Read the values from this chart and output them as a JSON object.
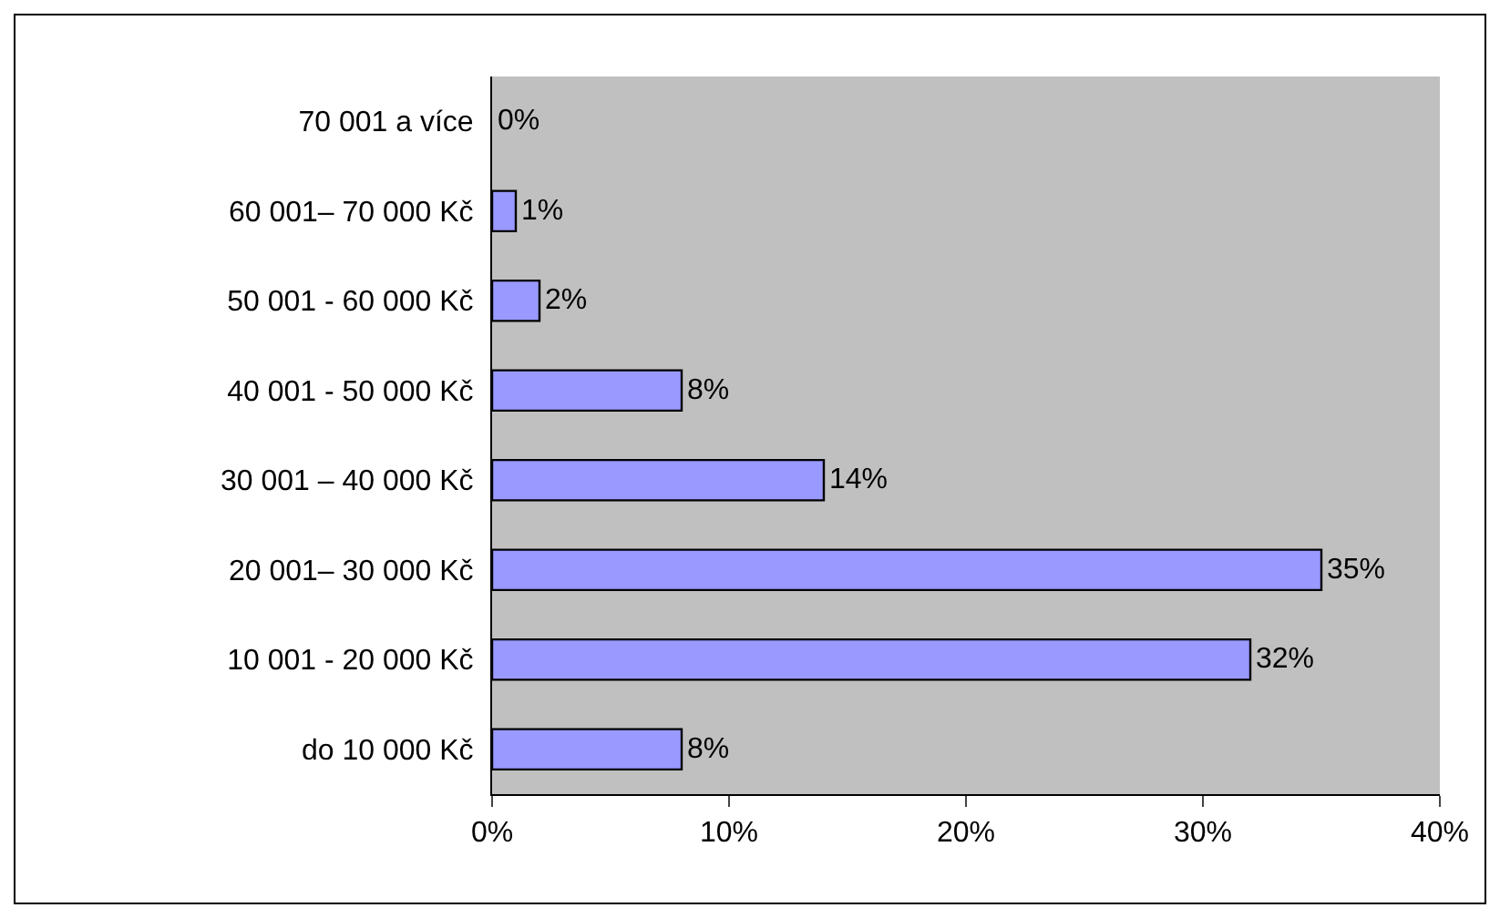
{
  "chart_data": {
    "type": "bar",
    "orientation": "horizontal",
    "categories": [
      "70 001 a více",
      "60 001– 70 000 Kč",
      "50 001 - 60 000 Kč",
      "40 001 - 50 000 Kč",
      "30 001 – 40 000 Kč",
      "20 001– 30 000 Kč",
      "10 001 - 20 000 Kč",
      "do 10 000 Kč"
    ],
    "values": [
      0,
      1,
      2,
      8,
      14,
      35,
      32,
      8
    ],
    "value_labels": [
      "0%",
      "1%",
      "2%",
      "8%",
      "14%",
      "35%",
      "32%",
      "8%"
    ],
    "color": "#9999ff",
    "xlim": [
      0,
      40
    ],
    "xticks": [
      {
        "value": 0,
        "label": "0%"
      },
      {
        "value": 10,
        "label": "10%"
      },
      {
        "value": 20,
        "label": "20%"
      },
      {
        "value": 30,
        "label": "30%"
      },
      {
        "value": 40,
        "label": "40%"
      }
    ],
    "grid": false,
    "legend": false
  }
}
